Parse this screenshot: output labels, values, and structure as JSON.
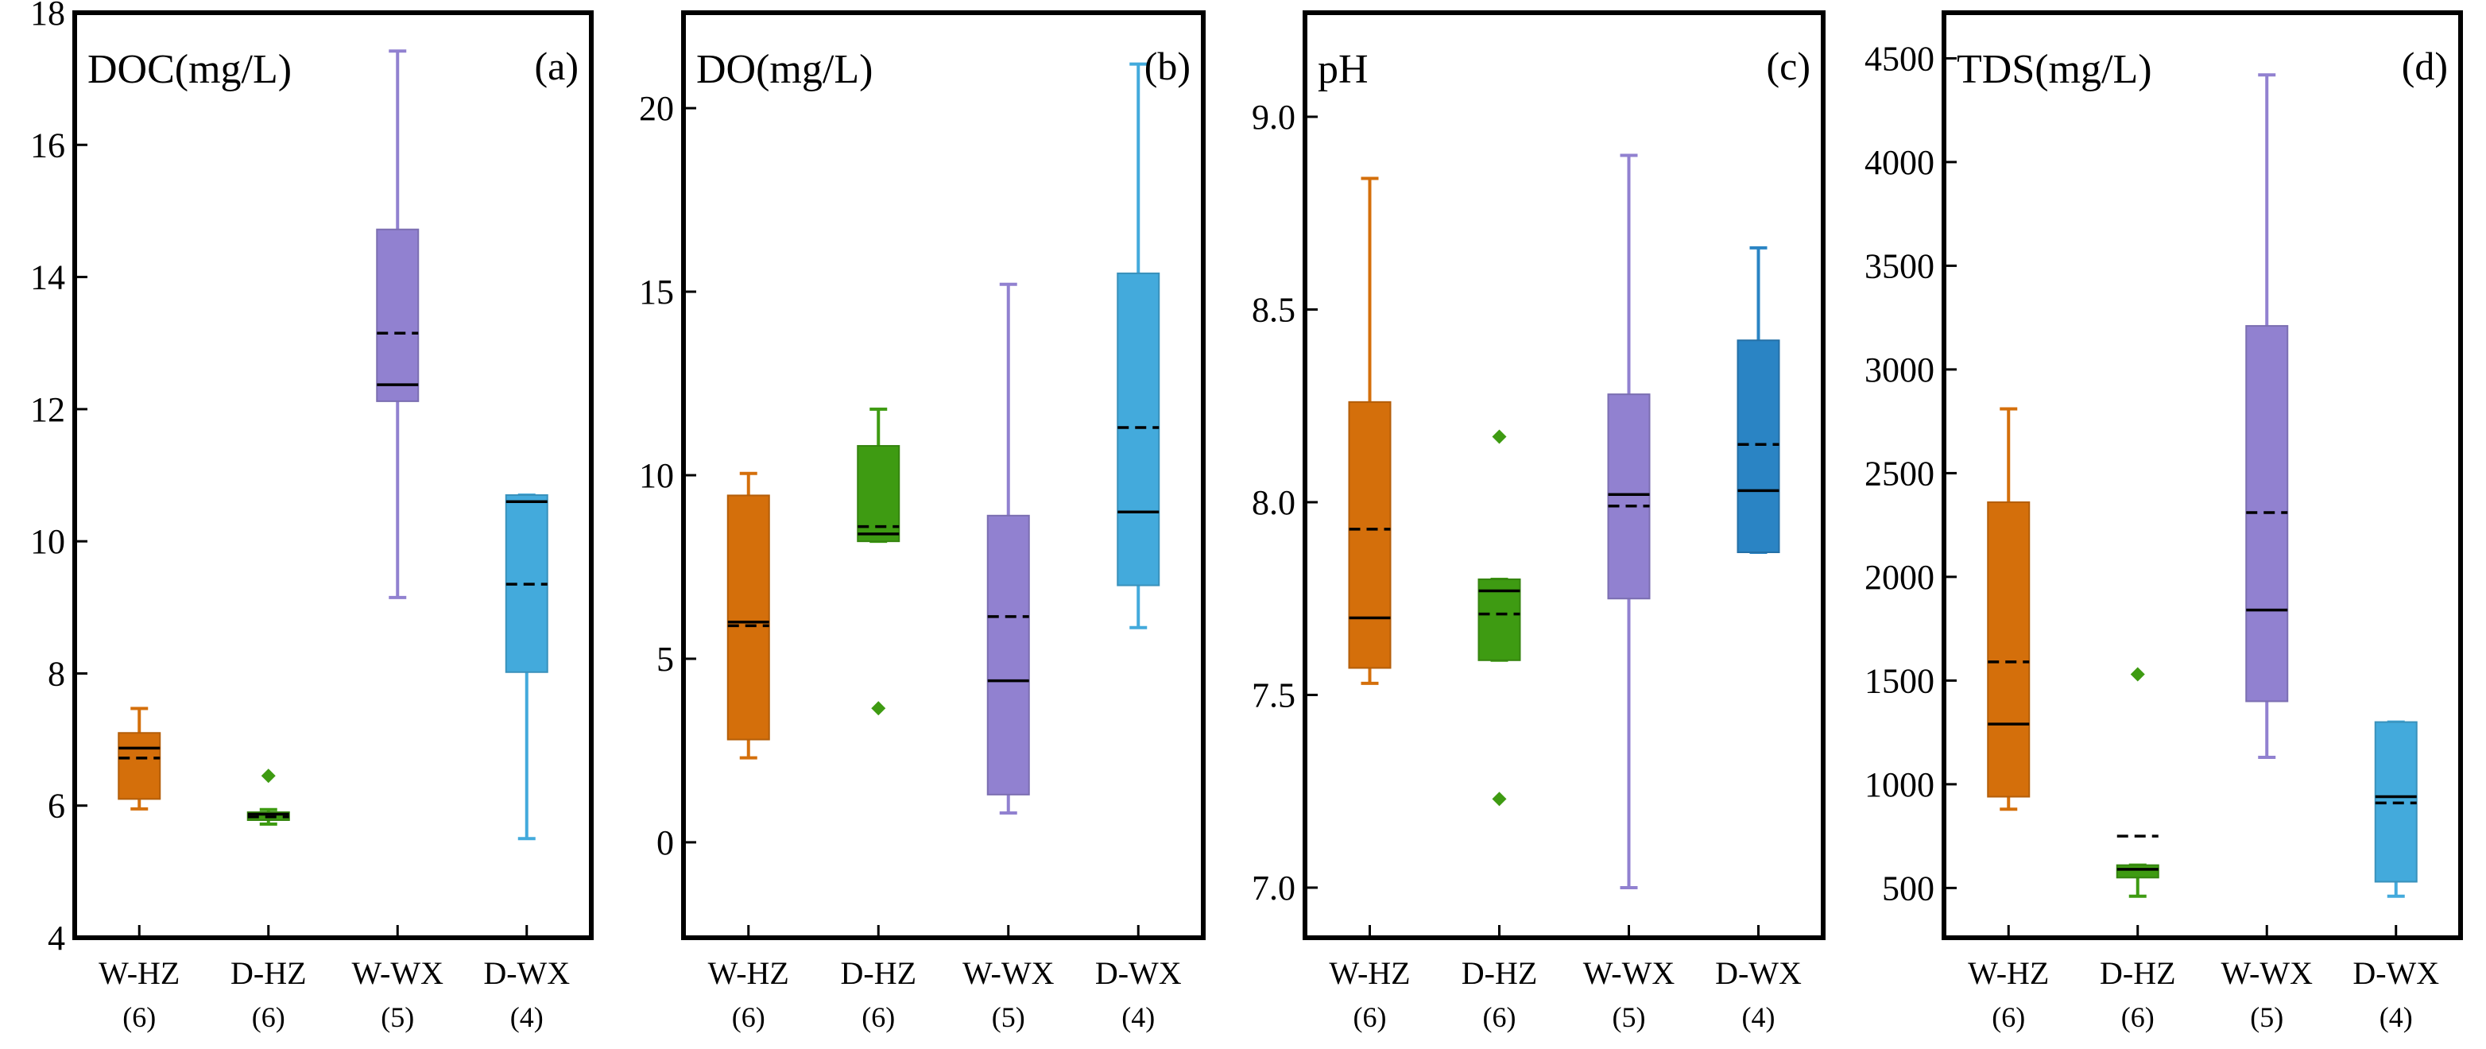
{
  "chart_data": [
    {
      "type": "box",
      "panel_label": "(a)",
      "title": "DOC(mg/L)",
      "ylim": [
        4,
        18
      ],
      "yticks": [
        4,
        6,
        8,
        10,
        12,
        14,
        16,
        18
      ],
      "categories": [
        "W-HZ",
        "D-HZ",
        "W-WX",
        "D-WX"
      ],
      "counts": [
        "(6)",
        "(6)",
        "(5)",
        "(4)"
      ],
      "colors": [
        "#d46f0b",
        "#3e9b12",
        "#9181d0",
        "#43aadc"
      ],
      "boxes": [
        {
          "min": 5.95,
          "q1": 6.1,
          "median": 6.87,
          "mean": 6.72,
          "q3": 7.1,
          "max": 7.47,
          "outliers": []
        },
        {
          "min": 5.72,
          "q1": 5.78,
          "median": 5.87,
          "mean": 5.83,
          "q3": 5.9,
          "max": 5.94,
          "outliers": [
            6.45
          ]
        },
        {
          "min": 9.15,
          "q1": 12.12,
          "median": 12.37,
          "mean": 13.15,
          "q3": 14.72,
          "max": 17.42,
          "outliers": []
        },
        {
          "min": 5.5,
          "q1": 8.02,
          "median": 10.6,
          "mean": 9.35,
          "q3": 10.7,
          "max": 10.7,
          "outliers": []
        }
      ]
    },
    {
      "type": "box",
      "panel_label": "(b)",
      "title": "DO(mg/L)",
      "ylim": [
        -2.6,
        22.6
      ],
      "yticks": [
        0,
        5,
        10,
        15,
        20
      ],
      "categories": [
        "W-HZ",
        "D-HZ",
        "W-WX",
        "D-WX"
      ],
      "counts": [
        "(6)",
        "(6)",
        "(5)",
        "(4)"
      ],
      "colors": [
        "#d46f0b",
        "#3e9b12",
        "#9181d0",
        "#43aadc"
      ],
      "boxes": [
        {
          "min": 2.3,
          "q1": 2.8,
          "median": 6.0,
          "mean": 5.9,
          "q3": 9.45,
          "max": 10.05,
          "outliers": []
        },
        {
          "min": 8.2,
          "q1": 8.2,
          "median": 8.4,
          "mean": 8.6,
          "q3": 10.8,
          "max": 11.8,
          "outliers": [
            3.65
          ]
        },
        {
          "min": 0.8,
          "q1": 1.3,
          "median": 4.4,
          "mean": 6.15,
          "q3": 8.9,
          "max": 15.2,
          "outliers": []
        },
        {
          "min": 5.85,
          "q1": 7.0,
          "median": 9.0,
          "mean": 11.3,
          "q3": 15.5,
          "max": 21.2,
          "outliers": []
        }
      ]
    },
    {
      "type": "box",
      "panel_label": "(c)",
      "title": "pH",
      "ylim": [
        6.87,
        9.27
      ],
      "yticks": [
        7.0,
        7.5,
        8.0,
        8.5,
        9.0
      ],
      "ytick_labels": [
        "7.0",
        "7.5",
        "8.0",
        "8.5",
        "9.0"
      ],
      "categories": [
        "W-HZ",
        "D-HZ",
        "W-WX",
        "D-WX"
      ],
      "counts": [
        "(6)",
        "(6)",
        "(5)",
        "(4)"
      ],
      "colors": [
        "#d46f0b",
        "#3e9b12",
        "#9181d0",
        "#2a84c4"
      ],
      "boxes": [
        {
          "min": 7.53,
          "q1": 7.57,
          "median": 7.7,
          "mean": 7.93,
          "q3": 8.26,
          "max": 8.84,
          "outliers": []
        },
        {
          "min": 7.59,
          "q1": 7.59,
          "median": 7.77,
          "mean": 7.71,
          "q3": 7.8,
          "max": 7.8,
          "outliers": [
            8.17,
            7.23
          ]
        },
        {
          "min": 7.0,
          "q1": 7.75,
          "median": 8.02,
          "mean": 7.99,
          "q3": 8.28,
          "max": 8.9,
          "outliers": []
        },
        {
          "min": 7.87,
          "q1": 7.87,
          "median": 8.03,
          "mean": 8.15,
          "q3": 8.42,
          "max": 8.66,
          "outliers": []
        }
      ]
    },
    {
      "type": "box",
      "panel_label": "(d)",
      "title": "TDS(mg/L)",
      "ylim": [
        260,
        4720
      ],
      "yticks": [
        500,
        1000,
        1500,
        2000,
        2500,
        3000,
        3500,
        4000,
        4500
      ],
      "categories": [
        "W-HZ",
        "D-HZ",
        "W-WX",
        "D-WX"
      ],
      "counts": [
        "(6)",
        "(6)",
        "(5)",
        "(4)"
      ],
      "colors": [
        "#d46f0b",
        "#3e9b12",
        "#9181d0",
        "#43aadc"
      ],
      "boxes": [
        {
          "min": 880,
          "q1": 940,
          "median": 1290,
          "mean": 1590,
          "q3": 2360,
          "max": 2810,
          "outliers": []
        },
        {
          "min": 460,
          "q1": 550,
          "median": 590,
          "mean": 750,
          "q3": 610,
          "max": 610,
          "outliers": [
            1530
          ]
        },
        {
          "min": 1130,
          "q1": 1400,
          "median": 1840,
          "mean": 2310,
          "q3": 3210,
          "max": 4420,
          "outliers": []
        },
        {
          "min": 460,
          "q1": 530,
          "median": 940,
          "mean": 910,
          "q3": 1300,
          "max": 1300,
          "outliers": []
        }
      ]
    }
  ]
}
